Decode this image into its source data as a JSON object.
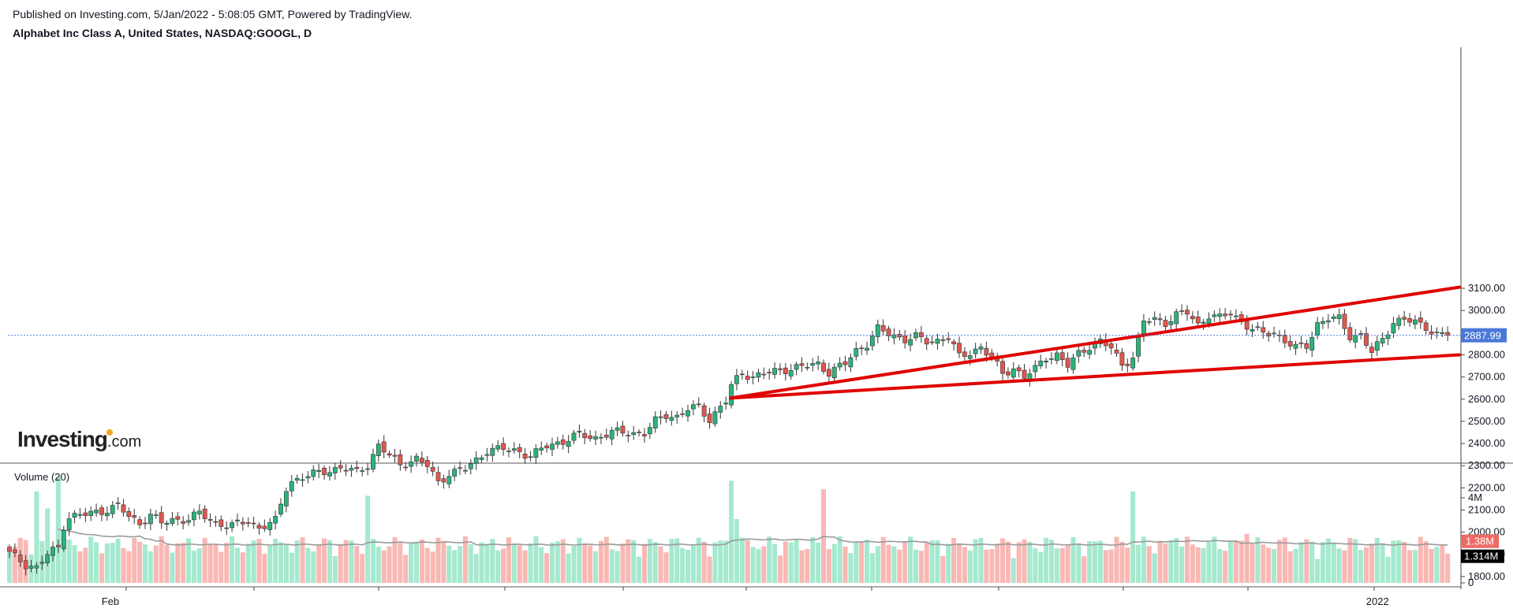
{
  "header": {
    "published": "Published on Investing.com, 5/Jan/2022 - 5:08:05 GMT, Powered by TradingView.",
    "symbol": "Alphabet Inc Class A, United States, NASDAQ:GOOGL, D"
  },
  "logo": {
    "bold": "Investing",
    "suffix": ".com"
  },
  "colors": {
    "up": "#26a69a",
    "up_fill": "#2bb37a",
    "down": "#ef5350",
    "down_fill": "#e0574f",
    "vol_up": "#a5e9cf",
    "vol_down": "#f9b8b4",
    "channel": "#e00000",
    "last_price": "#4a78d8"
  },
  "volume_label": "Volume (20)",
  "price_axis": {
    "ticks": [
      "3100.00",
      "3000.00",
      "2900.00",
      "2800.00",
      "2700.00",
      "2600.00",
      "2500.00",
      "2400.00",
      "2300.00",
      "2200.00",
      "2100.00",
      "2000.00",
      "1900.00",
      "1800.00"
    ],
    "last_price": "2887.99"
  },
  "volume_axis": {
    "ticks": [
      "4M",
      "2M",
      "0"
    ],
    "vol_label": "1.38M",
    "ma_label": "1.314M"
  },
  "time_axis": {
    "labels": [
      {
        "text": "Feb",
        "i": 19
      },
      {
        "text": "2022",
        "i": 252
      }
    ]
  },
  "chart_data": {
    "type": "candlestick",
    "title": "Alphabet Inc Class A, United States, NASDAQ:GOOGL, D",
    "ylim": [
      1720,
      3150
    ],
    "volume_ylim": [
      0,
      5000000
    ],
    "keypoints": [
      [
        0,
        1905
      ],
      [
        3,
        1855
      ],
      [
        5,
        1840
      ],
      [
        7,
        1900
      ],
      [
        9,
        1930
      ],
      [
        10,
        2030
      ],
      [
        11,
        2070
      ],
      [
        14,
        2080
      ],
      [
        17,
        2095
      ],
      [
        20,
        2120
      ],
      [
        22,
        2070
      ],
      [
        24,
        2040
      ],
      [
        26,
        2080
      ],
      [
        28,
        2040
      ],
      [
        30,
        2055
      ],
      [
        33,
        2060
      ],
      [
        35,
        2085
      ],
      [
        38,
        2040
      ],
      [
        41,
        2030
      ],
      [
        44,
        2050
      ],
      [
        46,
        2020
      ],
      [
        49,
        2050
      ],
      [
        51,
        2200
      ],
      [
        52,
        2230
      ],
      [
        55,
        2255
      ],
      [
        58,
        2275
      ],
      [
        61,
        2290
      ],
      [
        64,
        2270
      ],
      [
        66,
        2305
      ],
      [
        68,
        2390
      ],
      [
        70,
        2345
      ],
      [
        72,
        2305
      ],
      [
        75,
        2330
      ],
      [
        77,
        2300
      ],
      [
        79,
        2225
      ],
      [
        81,
        2265
      ],
      [
        84,
        2285
      ],
      [
        86,
        2325
      ],
      [
        88,
        2370
      ],
      [
        91,
        2375
      ],
      [
        94,
        2365
      ],
      [
        96,
        2340
      ],
      [
        99,
        2390
      ],
      [
        102,
        2410
      ],
      [
        105,
        2440
      ],
      [
        108,
        2425
      ],
      [
        111,
        2450
      ],
      [
        114,
        2450
      ],
      [
        117,
        2445
      ],
      [
        119,
        2500
      ],
      [
        121,
        2530
      ],
      [
        123,
        2520
      ],
      [
        125,
        2555
      ],
      [
        127,
        2565
      ],
      [
        129,
        2510
      ],
      [
        132,
        2590
      ],
      [
        133,
        2660
      ],
      [
        135,
        2720
      ],
      [
        137,
        2700
      ],
      [
        140,
        2720
      ],
      [
        143,
        2735
      ],
      [
        146,
        2745
      ],
      [
        149,
        2760
      ],
      [
        151,
        2720
      ],
      [
        154,
        2760
      ],
      [
        156,
        2820
      ],
      [
        158,
        2850
      ],
      [
        160,
        2915
      ],
      [
        162,
        2895
      ],
      [
        165,
        2870
      ],
      [
        167,
        2880
      ],
      [
        169,
        2860
      ],
      [
        171,
        2865
      ],
      [
        173,
        2880
      ],
      [
        175,
        2790
      ],
      [
        177,
        2810
      ],
      [
        179,
        2835
      ],
      [
        181,
        2785
      ],
      [
        183,
        2715
      ],
      [
        185,
        2740
      ],
      [
        187,
        2700
      ],
      [
        189,
        2735
      ],
      [
        191,
        2790
      ],
      [
        193,
        2800
      ],
      [
        195,
        2750
      ],
      [
        197,
        2805
      ],
      [
        199,
        2840
      ],
      [
        201,
        2860
      ],
      [
        203,
        2830
      ],
      [
        205,
        2755
      ],
      [
        207,
        2790
      ],
      [
        209,
        2950
      ],
      [
        211,
        2960
      ],
      [
        213,
        2945
      ],
      [
        215,
        2980
      ],
      [
        217,
        2990
      ],
      [
        219,
        2935
      ],
      [
        221,
        2980
      ],
      [
        223,
        2965
      ],
      [
        225,
        2990
      ],
      [
        227,
        2950
      ],
      [
        229,
        2915
      ],
      [
        231,
        2895
      ],
      [
        233,
        2900
      ],
      [
        235,
        2865
      ],
      [
        237,
        2830
      ],
      [
        239,
        2840
      ],
      [
        241,
        2940
      ],
      [
        243,
        2965
      ],
      [
        245,
        2960
      ],
      [
        247,
        2885
      ],
      [
        249,
        2890
      ],
      [
        251,
        2810
      ],
      [
        253,
        2870
      ],
      [
        255,
        2950
      ],
      [
        257,
        2960
      ],
      [
        259,
        2945
      ],
      [
        261,
        2925
      ],
      [
        263,
        2895
      ],
      [
        265,
        2887.99
      ]
    ],
    "volume": {
      "spike_high": [
        [
          5,
          4.3
        ],
        [
          7,
          3.5
        ],
        [
          9,
          5.0
        ],
        [
          66,
          4.1
        ],
        [
          133,
          4.8
        ],
        [
          134,
          3.0
        ],
        [
          150,
          4.4
        ],
        [
          207,
          4.3
        ],
        [
          215,
          2.1
        ],
        [
          228,
          2.3
        ]
      ],
      "base_millions": 1.35
    },
    "channel_lines": [
      {
        "from": [
          132,
          2605
        ],
        "to": [
          265,
          3105
        ]
      },
      {
        "from": [
          132,
          2605
        ],
        "to": [
          265,
          2800
        ]
      }
    ],
    "volume_ma_millions": {
      "start": 2.1,
      "end": 1.314
    },
    "last_volume": "1.38M"
  }
}
